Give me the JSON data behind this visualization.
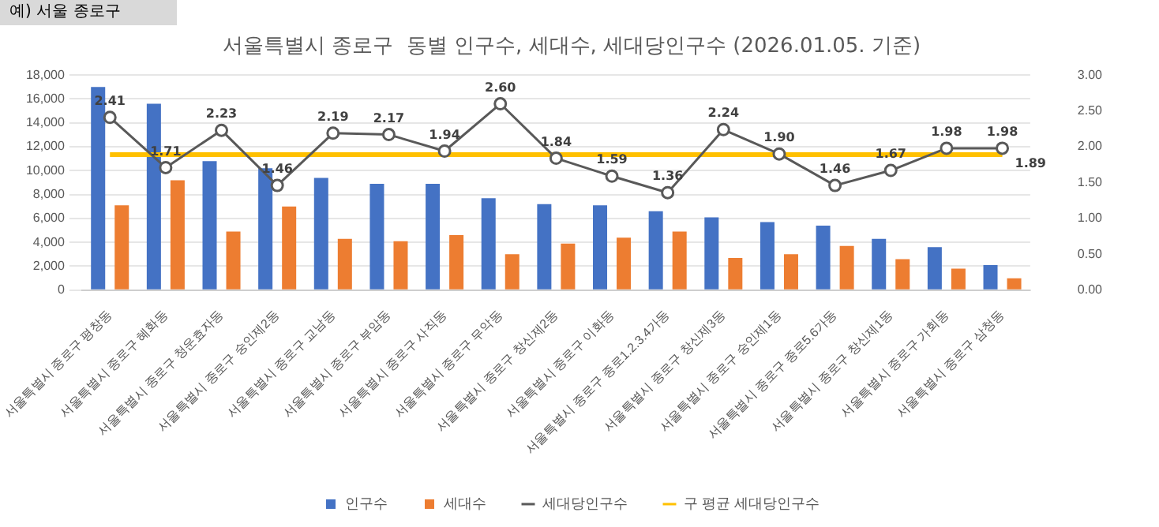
{
  "chart_data": {
    "type": "bar",
    "title": "서울특별시 종로구  동별 인구수, 세대수, 세대당인구수 (2026.01.05. 기준)",
    "annotations": [
      "예) 서울 종로구"
    ],
    "categories": [
      "서울특별시 종로구 평창동",
      "서울특별시 종로구 혜화동",
      "서울특별시 종로구 청운효자동",
      "서울특별시 종로구 숭인제2동",
      "서울특별시 종로구 교남동",
      "서울특별시 종로구 부암동",
      "서울특별시 종로구 사직동",
      "서울특별시 종로구 무악동",
      "서울특별시 종로구 창신제2동",
      "서울특별시 종로구 이화동",
      "서울특별시 종로구 종로1.2.3.4가동",
      "서울특별시 종로구 창신제3동",
      "서울특별시 종로구 숭인제1동",
      "서울특별시 종로구 종로5.6가동",
      "서울특별시 종로구 창신제1동",
      "서울특별시 종로구 가회동",
      "서울특별시 종로구 삼청동"
    ],
    "series": [
      {
        "name": "인구수",
        "color": "#4472c4",
        "values": [
          17000,
          15600,
          10800,
          10200,
          9400,
          8900,
          8900,
          7700,
          7200,
          7100,
          6600,
          6100,
          5700,
          5400,
          4300,
          3600,
          2100
        ]
      },
      {
        "name": "세대수",
        "color": "#ed7d31",
        "values": [
          7100,
          9200,
          4900,
          7000,
          4300,
          4100,
          4600,
          3000,
          3900,
          4400,
          4900,
          2700,
          3000,
          3700,
          2600,
          1800,
          1000
        ]
      },
      {
        "name": "세대당인구수",
        "type": "line",
        "axis": "y2",
        "color": "#595959",
        "marker": "circle",
        "values": [
          2.41,
          1.71,
          2.23,
          1.46,
          2.19,
          2.17,
          1.94,
          2.6,
          1.84,
          1.59,
          1.36,
          2.24,
          1.9,
          1.46,
          1.67,
          1.98,
          1.98
        ],
        "value_labels": [
          "2.41",
          "1.71",
          "2.23",
          "1.46",
          "2.19",
          "2.17",
          "1.94",
          "2.60",
          "1.84",
          "1.59",
          "1.36",
          "2.24",
          "1.90",
          "1.46",
          "1.67",
          "1.98",
          "1.98"
        ]
      },
      {
        "name": "구 평균 세대당인구수",
        "type": "line",
        "axis": "y2",
        "color": "#ffc000",
        "marker": "none",
        "values": [
          1.89,
          1.89,
          1.89,
          1.89,
          1.89,
          1.89,
          1.89,
          1.89,
          1.89,
          1.89,
          1.89,
          1.89,
          1.89,
          1.89,
          1.89,
          1.89,
          1.89
        ],
        "value_labels": [
          null,
          null,
          null,
          null,
          null,
          null,
          null,
          null,
          null,
          null,
          null,
          null,
          null,
          null,
          null,
          null,
          "1.89"
        ]
      }
    ],
    "ylim": [
      0,
      18000
    ],
    "yticks": [
      {
        "value": 0,
        "label": "0"
      },
      {
        "value": 2000,
        "label": "2,000"
      },
      {
        "value": 4000,
        "label": "4,000"
      },
      {
        "value": 6000,
        "label": "6,000"
      },
      {
        "value": 8000,
        "label": "8,000"
      },
      {
        "value": 10000,
        "label": "10,000"
      },
      {
        "value": 12000,
        "label": "12,000"
      },
      {
        "value": 14000,
        "label": "14,000"
      },
      {
        "value": 16000,
        "label": "16,000"
      },
      {
        "value": 18000,
        "label": "18,000"
      }
    ],
    "y2lim": [
      0,
      3
    ],
    "y2ticks": [
      {
        "value": 0,
        "label": "0.00"
      },
      {
        "value": 0.5,
        "label": "0.50"
      },
      {
        "value": 1,
        "label": "1.00"
      },
      {
        "value": 1.5,
        "label": "1.50"
      },
      {
        "value": 2,
        "label": "2.00"
      },
      {
        "value": 2.5,
        "label": "2.50"
      },
      {
        "value": 3,
        "label": "3.00"
      }
    ],
    "grid": "y",
    "legend": "bottom"
  }
}
